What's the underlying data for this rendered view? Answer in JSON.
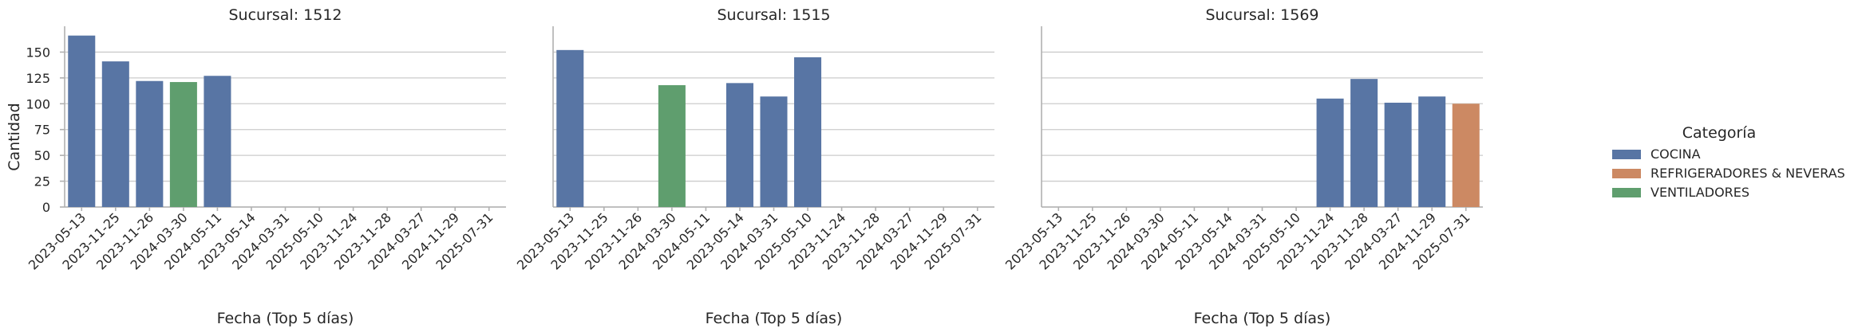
{
  "chart_data": {
    "type": "bar",
    "layout": "facet-grid",
    "sharey": true,
    "grid": "horizontal",
    "legend_position": "right",
    "ylabel": "Cantidad",
    "xlabel": "Fecha (Top 5 días)",
    "ylim": [
      0,
      175
    ],
    "yticks": [
      0,
      25,
      50,
      75,
      100,
      125,
      150
    ],
    "categories": [
      "2023-05-13",
      "2023-11-25",
      "2023-11-26",
      "2024-03-30",
      "2024-05-11",
      "2023-05-14",
      "2024-03-31",
      "2025-05-10",
      "2023-11-24",
      "2023-11-28",
      "2024-03-27",
      "2024-11-29",
      "2025-07-31"
    ],
    "legend": {
      "title": "Categoría",
      "items": [
        {
          "label": "COCINA",
          "color": "#5875a4"
        },
        {
          "label": "REFRIGERADORES & NEVERAS",
          "color": "#cc8963"
        },
        {
          "label": "VENTILADORES",
          "color": "#5f9e6e"
        }
      ]
    },
    "panels": [
      {
        "title": "Sucursal: 1512",
        "bars": [
          {
            "x": "2023-05-13",
            "value": 166,
            "series": "COCINA"
          },
          {
            "x": "2023-11-25",
            "value": 141,
            "series": "COCINA"
          },
          {
            "x": "2023-11-26",
            "value": 122,
            "series": "COCINA"
          },
          {
            "x": "2024-03-30",
            "value": 121,
            "series": "VENTILADORES"
          },
          {
            "x": "2024-05-11",
            "value": 127,
            "series": "COCINA"
          }
        ]
      },
      {
        "title": "Sucursal: 1515",
        "bars": [
          {
            "x": "2023-05-13",
            "value": 152,
            "series": "COCINA"
          },
          {
            "x": "2024-03-30",
            "value": 118,
            "series": "VENTILADORES"
          },
          {
            "x": "2023-05-14",
            "value": 120,
            "series": "COCINA"
          },
          {
            "x": "2024-03-31",
            "value": 107,
            "series": "COCINA"
          },
          {
            "x": "2025-05-10",
            "value": 145,
            "series": "COCINA"
          }
        ]
      },
      {
        "title": "Sucursal: 1569",
        "bars": [
          {
            "x": "2023-11-24",
            "value": 105,
            "series": "COCINA"
          },
          {
            "x": "2023-11-28",
            "value": 124,
            "series": "COCINA"
          },
          {
            "x": "2024-03-27",
            "value": 101,
            "series": "COCINA"
          },
          {
            "x": "2024-11-29",
            "value": 107,
            "series": "COCINA"
          },
          {
            "x": "2025-07-31",
            "value": 100,
            "series": "REFRIGERADORES & NEVERAS"
          }
        ]
      }
    ]
  }
}
